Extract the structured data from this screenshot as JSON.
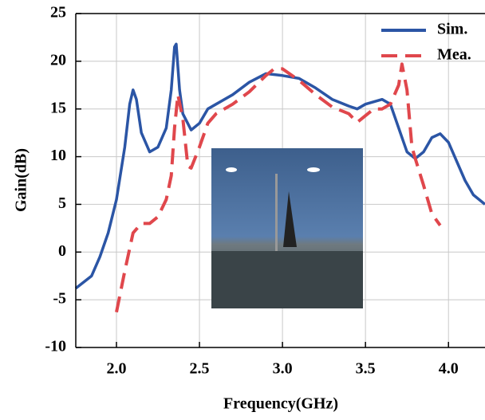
{
  "chart_data": {
    "type": "line",
    "x_label": "Frequency(GHz)",
    "y_label": "Gain(dB)",
    "xlim": [
      1.755,
      4.22
    ],
    "ylim": [
      -10,
      25
    ],
    "xticks": [
      {
        "value": 2,
        "label": "2.0"
      },
      {
        "value": 2.5,
        "label": "2.5"
      },
      {
        "value": 3,
        "label": "3.0"
      },
      {
        "value": 3.5,
        "label": "3.5"
      },
      {
        "value": 4,
        "label": "4.0"
      }
    ],
    "yticks": [
      -10,
      -5,
      0,
      5,
      10,
      15,
      20,
      25
    ],
    "grid": true,
    "legend": "top-right",
    "series": [
      {
        "name": "Sim.",
        "color": "#2b55a5",
        "dash": false,
        "x": [
          1.755,
          1.85,
          1.9,
          1.95,
          2.0,
          2.05,
          2.08,
          2.1,
          2.12,
          2.15,
          2.2,
          2.25,
          2.3,
          2.33,
          2.35,
          2.36,
          2.38,
          2.4,
          2.45,
          2.5,
          2.55,
          2.6,
          2.7,
          2.8,
          2.9,
          3.0,
          3.1,
          3.2,
          3.3,
          3.4,
          3.45,
          3.5,
          3.6,
          3.65,
          3.7,
          3.75,
          3.8,
          3.85,
          3.9,
          3.95,
          4.0,
          4.05,
          4.1,
          4.15,
          4.22
        ],
        "values": [
          -3.8,
          -2.5,
          -0.5,
          2,
          5.5,
          11,
          15.5,
          17,
          16,
          12.5,
          10.5,
          11,
          13,
          17,
          21.5,
          21.8,
          17,
          14.5,
          12.8,
          13.5,
          15,
          15.5,
          16.5,
          17.8,
          18.7,
          18.5,
          18.2,
          17.2,
          16,
          15.3,
          15,
          15.5,
          16,
          15.5,
          13,
          10.5,
          9.8,
          10.5,
          12,
          12.4,
          11.5,
          9.5,
          7.5,
          6,
          5
        ]
      },
      {
        "name": "Mea.",
        "color": "#e0474c",
        "dash": true,
        "x": [
          2.0,
          2.05,
          2.1,
          2.15,
          2.2,
          2.25,
          2.3,
          2.33,
          2.35,
          2.37,
          2.4,
          2.43,
          2.45,
          2.5,
          2.55,
          2.6,
          2.7,
          2.8,
          2.9,
          2.95,
          3.0,
          3.1,
          3.2,
          3.3,
          3.4,
          3.45,
          3.5,
          3.55,
          3.6,
          3.65,
          3.7,
          3.72,
          3.75,
          3.78,
          3.8,
          3.85,
          3.9,
          3.95
        ],
        "values": [
          -6.3,
          -2,
          2,
          3,
          3,
          3.7,
          5.5,
          8,
          13,
          16.5,
          14,
          9,
          8.8,
          11,
          13.5,
          14.5,
          15.5,
          16.8,
          18.5,
          19.2,
          19.2,
          18,
          16.5,
          15.2,
          14.5,
          13.6,
          14.3,
          15,
          15,
          15.5,
          17.5,
          19.7,
          17,
          11,
          9.8,
          7,
          4,
          2.8
        ]
      }
    ]
  }
}
